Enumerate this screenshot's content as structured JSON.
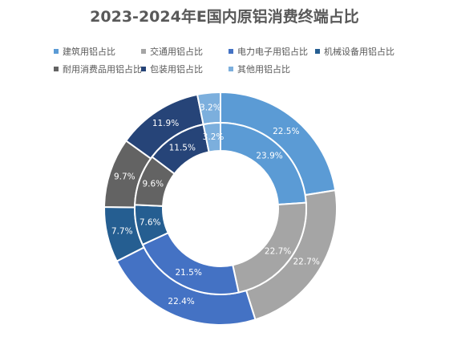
{
  "chart_data": {
    "type": "donut",
    "title": "2023-2024年E国内原铝消费终端占比",
    "categories": [
      "建筑用铝占比",
      "交通用铝占比",
      "电力电子用铝占比",
      "机械设备用铝占比",
      "耐用消费品用铝占比",
      "包装用铝占比",
      "其他用铝占比"
    ],
    "colors": [
      "#5B9BD5",
      "#A5A5A5",
      "#4472C4",
      "#255E91",
      "#636363",
      "#264478",
      "#7CAFDD"
    ],
    "series": [
      {
        "ring": "outer",
        "values": [
          22.5,
          22.7,
          22.4,
          7.7,
          9.7,
          11.9,
          3.2
        ],
        "labels": [
          "22.5%",
          "22.7%",
          "22.4%",
          "7.7%",
          "9.7%",
          "11.9%",
          "3.2%"
        ]
      },
      {
        "ring": "inner",
        "values": [
          23.9,
          22.7,
          21.5,
          7.6,
          9.6,
          11.5,
          3.2
        ],
        "labels": [
          "23.9%",
          "22.7%",
          "21.5%",
          "7.6%",
          "9.6%",
          "11.5%",
          "3.2%"
        ]
      }
    ],
    "legend_position": "top"
  }
}
